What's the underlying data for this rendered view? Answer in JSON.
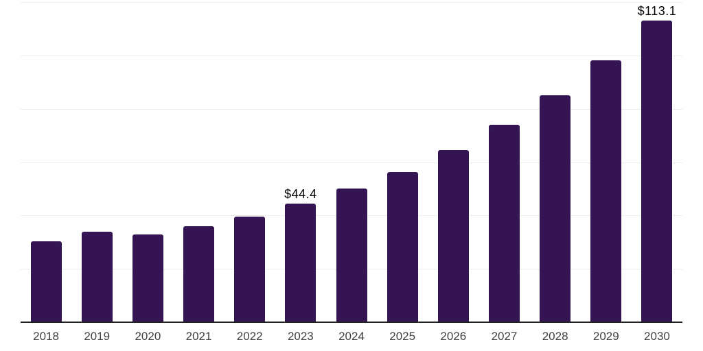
{
  "chart_data": {
    "type": "bar",
    "title": "",
    "xlabel": "",
    "ylabel": "",
    "categories": [
      "2018",
      "2019",
      "2020",
      "2021",
      "2022",
      "2023",
      "2024",
      "2025",
      "2026",
      "2027",
      "2028",
      "2029",
      "2030"
    ],
    "values": [
      30.4,
      34.0,
      33.0,
      35.9,
      39.7,
      44.4,
      50.1,
      56.4,
      64.4,
      73.9,
      85.1,
      98.1,
      113.1
    ],
    "bar_labels": {
      "2023": "$44.4",
      "2030": "$113.1"
    },
    "value_prefix": "$",
    "ylim": [
      0,
      120
    ],
    "grid": true,
    "gridline_values": [
      20,
      40,
      60,
      80,
      100,
      120
    ],
    "y_axis_labels_visible": false,
    "legend_position": "none"
  },
  "colors": {
    "background": "#ffffff",
    "bar": "#351453",
    "grid": "#ededed",
    "axis": "#222222",
    "tick_label": "#3f3f3f",
    "value_label": "#000000"
  }
}
